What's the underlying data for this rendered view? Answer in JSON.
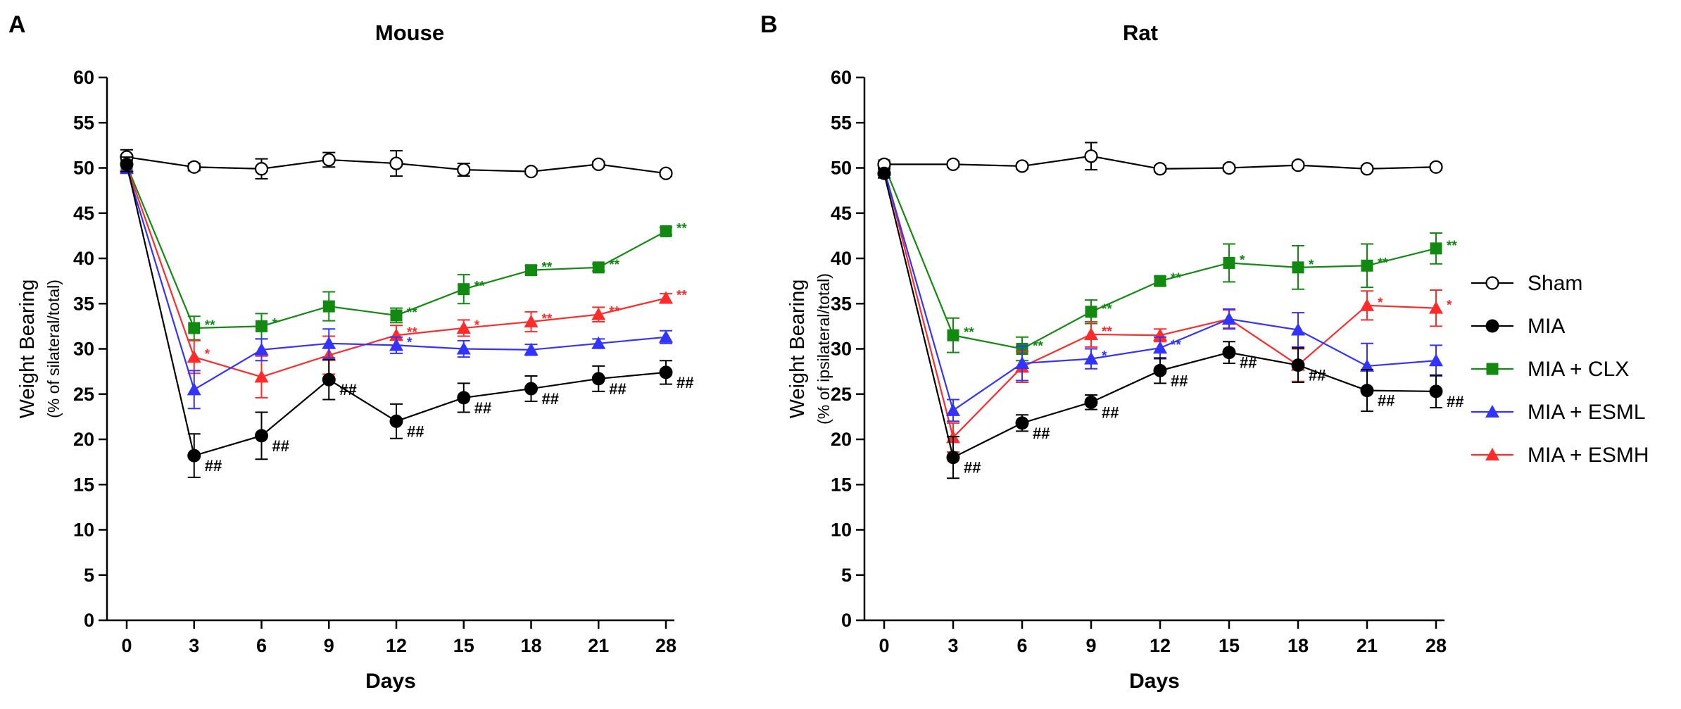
{
  "figure": {
    "legend_title_none": ""
  },
  "chart_data": [
    {
      "panel": "A",
      "title": "Mouse",
      "type": "line",
      "xlabel": "Days",
      "ylabel": "Weight Bearing",
      "ylabel_sub": "(% of silateral/total)",
      "categories": [
        "0",
        "3",
        "6",
        "9",
        "12",
        "15",
        "18",
        "21",
        "28"
      ],
      "ylim": [
        0,
        60
      ],
      "yticks": [
        0,
        5,
        10,
        15,
        20,
        25,
        30,
        35,
        40,
        45,
        50,
        55,
        60
      ],
      "series": [
        {
          "name": "Sham",
          "color": "#000000",
          "marker": "open-circle",
          "values": [
            51.2,
            50.1,
            49.9,
            50.9,
            50.5,
            49.8,
            49.6,
            50.4,
            49.4
          ],
          "errors": [
            0.8,
            0.4,
            1.1,
            0.8,
            1.4,
            0.7,
            0.3,
            0.3,
            0.3
          ],
          "annotations": [
            "",
            "",
            "",
            "",
            "",
            "",
            "",
            "",
            ""
          ]
        },
        {
          "name": "MIA",
          "color": "#000000",
          "marker": "filled-circle",
          "values": [
            50.4,
            18.2,
            20.4,
            26.6,
            22.0,
            24.6,
            25.6,
            26.7,
            27.4
          ],
          "errors": [
            0.8,
            2.4,
            2.6,
            2.2,
            1.9,
            1.6,
            1.4,
            1.4,
            1.3
          ],
          "annotations": [
            "",
            "##",
            "##",
            "##",
            "##",
            "##",
            "##",
            "##",
            "##"
          ]
        },
        {
          "name": "MIA + CLX",
          "color": "#128a12",
          "marker": "square",
          "values": [
            50.3,
            32.3,
            32.5,
            34.7,
            33.7,
            36.6,
            38.7,
            39.0,
            43.0
          ],
          "errors": [
            0.7,
            1.3,
            1.4,
            1.6,
            0.8,
            1.6,
            0.5,
            0.4,
            0.4
          ],
          "annotations": [
            "",
            "**",
            "*",
            "",
            "**",
            "**",
            "**",
            "**",
            "**"
          ]
        },
        {
          "name": "MIA + ESML",
          "color": "#3333ff",
          "marker": "triangle",
          "values": [
            50.0,
            25.5,
            29.9,
            30.6,
            30.4,
            30.0,
            29.9,
            30.6,
            31.3
          ],
          "errors": [
            0.6,
            2.1,
            1.2,
            1.6,
            0.9,
            0.9,
            0.6,
            0.5,
            0.7
          ],
          "annotations": [
            "",
            "",
            "",
            "",
            "*",
            "",
            "",
            "",
            ""
          ]
        },
        {
          "name": "MIA + ESMH",
          "color": "#ff2b2b",
          "marker": "triangle",
          "values": [
            50.2,
            29.1,
            26.9,
            29.3,
            31.5,
            32.3,
            33.0,
            33.8,
            35.6
          ],
          "errors": [
            0.6,
            1.8,
            2.3,
            2.1,
            1.1,
            0.9,
            1.1,
            0.8,
            0.5
          ],
          "annotations": [
            "",
            "*",
            "",
            "",
            "**",
            "*",
            "**",
            "**",
            "**"
          ]
        }
      ]
    },
    {
      "panel": "B",
      "title": "Rat",
      "type": "line",
      "xlabel": "Days",
      "ylabel": "Weight Bearing",
      "ylabel_sub": "(% of ipsilateral/total)",
      "categories": [
        "0",
        "3",
        "6",
        "9",
        "12",
        "15",
        "18",
        "21",
        "28"
      ],
      "ylim": [
        0,
        60
      ],
      "yticks": [
        0,
        5,
        10,
        15,
        20,
        25,
        30,
        35,
        40,
        45,
        50,
        55,
        60
      ],
      "series": [
        {
          "name": "Sham",
          "color": "#000000",
          "marker": "open-circle",
          "values": [
            50.4,
            50.4,
            50.2,
            51.3,
            49.9,
            50.0,
            50.3,
            49.9,
            50.1
          ],
          "errors": [
            0.3,
            0.3,
            0.3,
            1.5,
            0.3,
            0.3,
            0.3,
            0.3,
            0.3
          ],
          "annotations": [
            "",
            "",
            "",
            "",
            "",
            "",
            "",
            "",
            ""
          ]
        },
        {
          "name": "MIA",
          "color": "#000000",
          "marker": "filled-circle",
          "values": [
            49.4,
            18.0,
            21.8,
            24.1,
            27.6,
            29.6,
            28.2,
            25.4,
            25.3
          ],
          "errors": [
            0.5,
            2.3,
            0.9,
            0.8,
            1.4,
            1.2,
            1.9,
            2.3,
            1.8
          ],
          "annotations": [
            "",
            "##",
            "##",
            "##",
            "##",
            "##",
            "##",
            "##",
            "##"
          ]
        },
        {
          "name": "MIA + CLX",
          "color": "#128a12",
          "marker": "square",
          "values": [
            50.3,
            31.5,
            30.0,
            34.1,
            37.5,
            39.5,
            39.0,
            39.2,
            41.1
          ],
          "errors": [
            0.4,
            1.9,
            1.3,
            1.3,
            0.5,
            2.1,
            2.4,
            2.4,
            1.7
          ],
          "annotations": [
            "",
            "**",
            "**",
            "**",
            "**",
            "*",
            "*",
            "**",
            "**"
          ]
        },
        {
          "name": "MIA + ESML",
          "color": "#3333ff",
          "marker": "triangle",
          "values": [
            49.8,
            23.2,
            28.4,
            28.9,
            30.1,
            33.3,
            32.1,
            28.1,
            28.7
          ],
          "errors": [
            0.4,
            1.2,
            1.9,
            1.1,
            1.2,
            1.1,
            1.9,
            2.5,
            1.7
          ],
          "annotations": [
            "",
            "",
            "",
            "*",
            "**",
            "",
            "",
            "",
            ""
          ]
        },
        {
          "name": "MIA + ESMH",
          "color": "#ff2b2b",
          "marker": "triangle",
          "values": [
            50.0,
            20.2,
            28.0,
            31.6,
            31.5,
            33.3,
            28.2,
            34.8,
            34.5
          ],
          "errors": [
            0.4,
            1.6,
            1.7,
            1.4,
            0.7,
            1.0,
            1.8,
            1.6,
            2.0
          ],
          "annotations": [
            "",
            "",
            "",
            "**",
            "",
            "",
            "",
            "*",
            "*"
          ]
        }
      ]
    }
  ],
  "legend": [
    {
      "label": "Sham",
      "color": "#000000",
      "marker": "open-circle"
    },
    {
      "label": "MIA",
      "color": "#000000",
      "marker": "filled-circle"
    },
    {
      "label": "MIA + CLX",
      "color": "#128a12",
      "marker": "square"
    },
    {
      "label": "MIA + ESML",
      "color": "#3333ff",
      "marker": "triangle"
    },
    {
      "label": "MIA + ESMH",
      "color": "#ff2b2b",
      "marker": "triangle"
    }
  ]
}
